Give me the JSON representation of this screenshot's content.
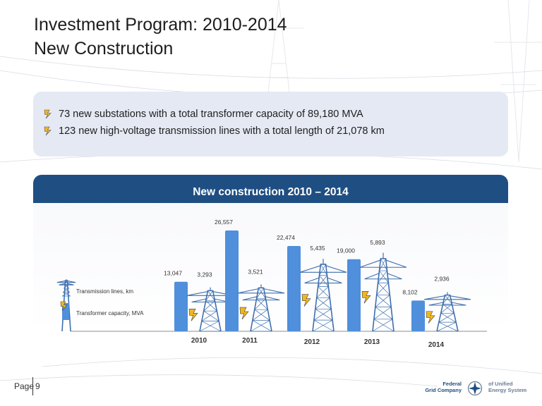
{
  "title": {
    "line1": "Investment Program: 2010-2014",
    "line2": "New Construction"
  },
  "summary": {
    "bullets": [
      "73 new substations with a total transformer capacity of 89,180 MVA",
      "123 new high-voltage transmission lines with a total length of 21,078 km"
    ]
  },
  "panel": {
    "heading": "New construction 2010 – 2014"
  },
  "chart_data": {
    "type": "bar",
    "categories": [
      "2010",
      "2011",
      "2012",
      "2013",
      "2014"
    ],
    "series": [
      {
        "name": "Transmission lines, km",
        "values": [
          3293,
          3521,
          5435,
          5893,
          2936
        ],
        "labels": [
          "3,293",
          "3,521",
          "5,435",
          "5,893",
          "2,936"
        ],
        "color": "#9aa5b6"
      },
      {
        "name": "Transformer capacity, MVA",
        "values": [
          13047,
          26557,
          22474,
          19000,
          8102
        ],
        "labels": [
          "13,047",
          "26,557",
          "22,474",
          "19,000",
          "8,102"
        ],
        "color": "#4f8fdc"
      }
    ],
    "legend": [
      "Transmission lines, km",
      "Transformer capacity, MVA"
    ],
    "legend_position": "left"
  },
  "footer": {
    "page_label": "Page",
    "page_number": "9",
    "logo_line1": "Federal",
    "logo_line2": "Grid Company",
    "logo_line3": "of Unified",
    "logo_line4": "Energy System"
  },
  "colors": {
    "header_bar": "#1f4e82",
    "summary_bg": "#e4e9f3",
    "bolt_yellow": "#f2b61f",
    "tower_blue": "#3f6fae"
  }
}
